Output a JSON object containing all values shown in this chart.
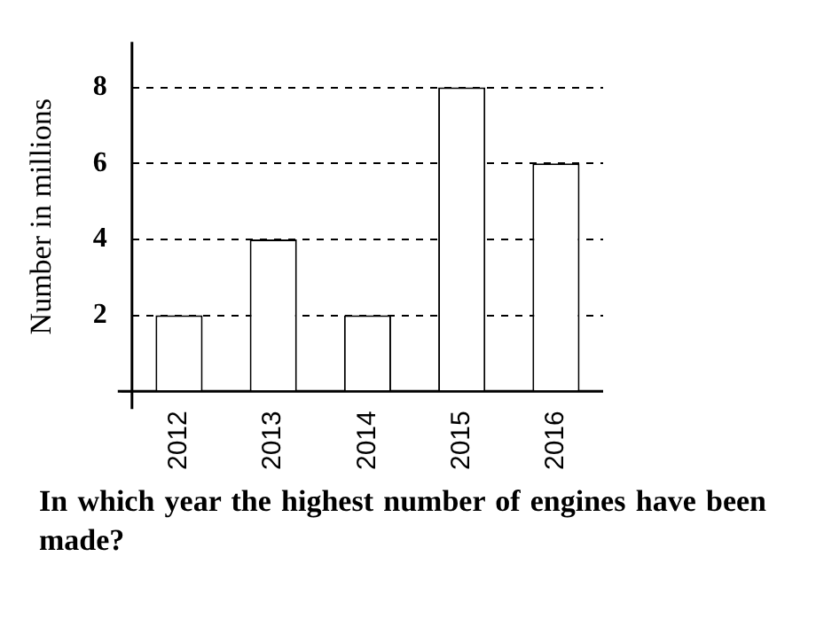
{
  "chart_data": {
    "type": "bar",
    "ylabel": "Number in millions",
    "categories": [
      "2012",
      "2013",
      "2014",
      "2015",
      "2016"
    ],
    "values": [
      2,
      4,
      2,
      8,
      6
    ],
    "color": "#ffffff",
    "ylim": [
      0,
      9.2
    ],
    "yticks": [
      {
        "value": 0,
        "label": null
      },
      2,
      4,
      6,
      8
    ],
    "grid": "y",
    "legend": false,
    "annotations": [
      "In which year the highest number of engines have been made?"
    ]
  }
}
